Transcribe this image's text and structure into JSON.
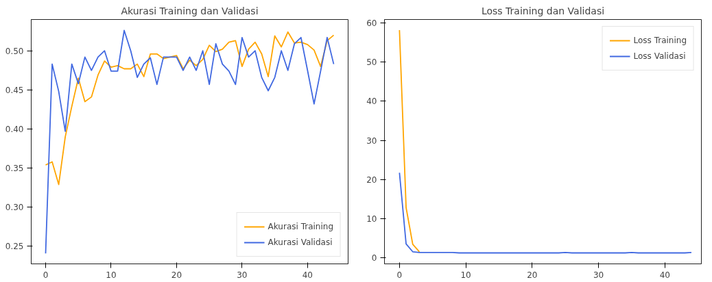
{
  "chart_data": [
    {
      "type": "line",
      "title": "Akurasi Training dan Validasi",
      "x": [
        0,
        1,
        2,
        3,
        4,
        5,
        6,
        7,
        8,
        9,
        10,
        11,
        12,
        13,
        14,
        15,
        16,
        17,
        18,
        19,
        20,
        21,
        22,
        23,
        24,
        25,
        26,
        27,
        28,
        29,
        30,
        31,
        32,
        33,
        34,
        35,
        36,
        37,
        38,
        39,
        40,
        41,
        42,
        43,
        44
      ],
      "series": [
        {
          "name": "Akurasi Training",
          "color": "#ffa500",
          "values": [
            0.354,
            0.358,
            0.329,
            0.39,
            0.429,
            0.465,
            0.435,
            0.441,
            0.469,
            0.487,
            0.479,
            0.481,
            0.477,
            0.477,
            0.483,
            0.467,
            0.496,
            0.496,
            0.49,
            0.492,
            0.494,
            0.477,
            0.488,
            0.481,
            0.489,
            0.507,
            0.499,
            0.502,
            0.511,
            0.513,
            0.48,
            0.502,
            0.511,
            0.496,
            0.467,
            0.519,
            0.505,
            0.524,
            0.51,
            0.511,
            0.508,
            0.501,
            0.48,
            0.513,
            0.52
          ]
        },
        {
          "name": "Akurasi Validasi",
          "color": "#4169e1",
          "values": [
            0.241,
            0.483,
            0.448,
            0.397,
            0.483,
            0.458,
            0.492,
            0.475,
            0.492,
            0.5,
            0.474,
            0.474,
            0.526,
            0.5,
            0.466,
            0.483,
            0.491,
            0.457,
            0.492,
            0.492,
            0.492,
            0.475,
            0.492,
            0.475,
            0.5,
            0.457,
            0.509,
            0.483,
            0.474,
            0.457,
            0.517,
            0.492,
            0.5,
            0.466,
            0.449,
            0.466,
            0.5,
            0.475,
            0.509,
            0.517,
            0.475,
            0.432,
            0.474,
            0.517,
            0.483
          ]
        }
      ],
      "xlim": [
        -2.2,
        46.2
      ],
      "ylim": [
        0.2276,
        0.54
      ],
      "xticks": [
        0,
        10,
        20,
        30,
        40
      ],
      "yticks": [
        {
          "value": 0.25,
          "label": "0.25"
        },
        {
          "value": 0.3,
          "label": "0.30"
        },
        {
          "value": 0.35,
          "label": "0.35"
        },
        {
          "value": 0.4,
          "label": "0.40"
        },
        {
          "value": 0.45,
          "label": "0.45"
        },
        {
          "value": 0.5,
          "label": "0.50"
        }
      ],
      "legend": "bottom right",
      "grid": false,
      "line_style": "solid"
    },
    {
      "type": "line",
      "title": "Loss Training dan Validasi",
      "x": [
        0,
        1,
        2,
        3,
        4,
        5,
        6,
        7,
        8,
        9,
        10,
        11,
        12,
        13,
        14,
        15,
        16,
        17,
        18,
        19,
        20,
        21,
        22,
        23,
        24,
        25,
        26,
        27,
        28,
        29,
        30,
        31,
        32,
        33,
        34,
        35,
        36,
        37,
        38,
        39,
        40,
        41,
        42,
        43,
        44
      ],
      "series": [
        {
          "name": "Loss Training",
          "color": "#ffa500",
          "values": [
            58.2,
            12.8,
            3.4,
            1.5,
            null,
            null,
            null,
            null,
            null,
            null,
            null,
            null,
            null,
            null,
            null,
            null,
            null,
            null,
            null,
            null,
            null,
            null,
            null,
            null,
            null,
            null,
            null,
            null,
            null,
            null,
            null,
            null,
            null,
            null,
            null,
            null,
            null,
            null,
            null,
            null,
            null,
            null,
            null,
            null,
            null
          ]
        },
        {
          "name": "Loss Validasi",
          "color": "#4169e1",
          "values": [
            21.7,
            3.5,
            1.5,
            1.3,
            1.3,
            1.3,
            1.3,
            1.3,
            1.3,
            1.2,
            1.2,
            1.2,
            1.2,
            1.2,
            1.2,
            1.2,
            1.2,
            1.2,
            1.2,
            1.2,
            1.2,
            1.2,
            1.2,
            1.2,
            1.2,
            1.3,
            1.2,
            1.2,
            1.2,
            1.2,
            1.2,
            1.2,
            1.2,
            1.2,
            1.2,
            1.3,
            1.2,
            1.2,
            1.2,
            1.2,
            1.2,
            1.2,
            1.2,
            1.2,
            1.3
          ]
        }
      ],
      "xlim": [
        -2.26,
        45.5
      ],
      "ylim": [
        -1.6,
        60.9
      ],
      "xticks": [
        0,
        10,
        20,
        30,
        40
      ],
      "yticks": [
        0,
        10,
        20,
        30,
        40,
        50,
        60
      ],
      "legend": "top right",
      "grid": false,
      "line_style": "solid"
    }
  ]
}
